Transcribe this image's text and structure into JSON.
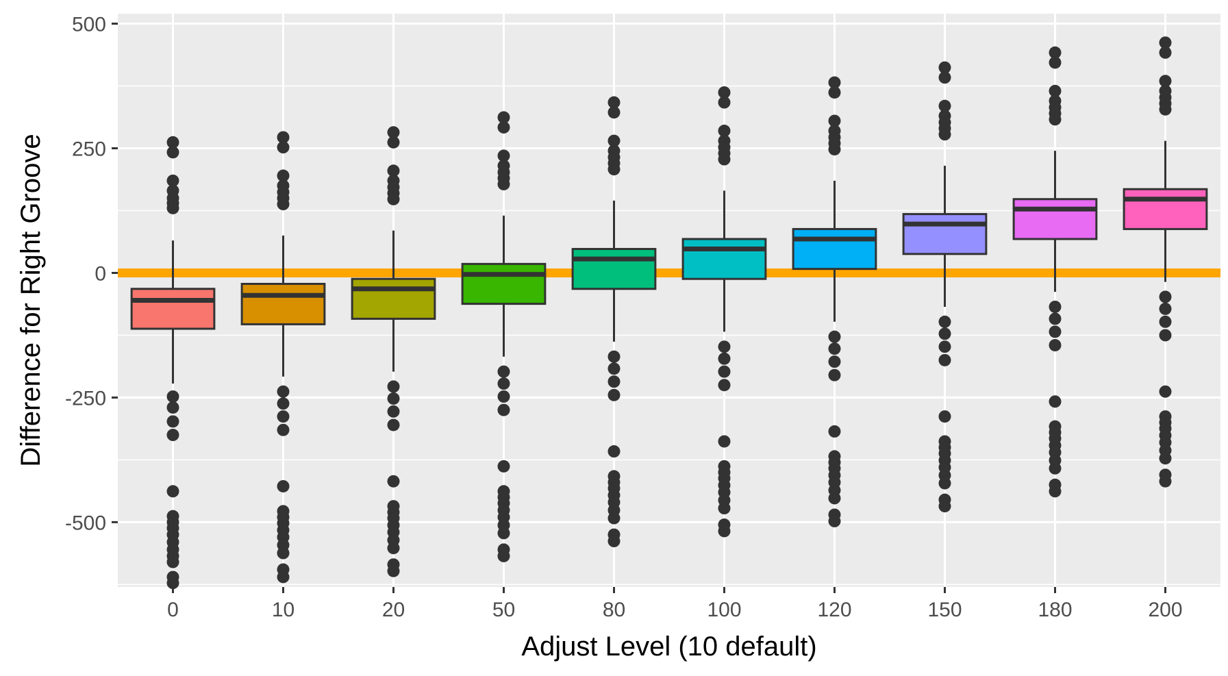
{
  "chart_data": {
    "type": "box",
    "title": "",
    "xlabel": "Adjust Level (10 default)",
    "ylabel": "Difference for Right Groove",
    "ylim": [
      -630,
      520
    ],
    "yticks": [
      500,
      250,
      0,
      -250,
      -500
    ],
    "ytick_labels": [
      "500",
      "250",
      "0",
      "-250",
      "-500"
    ],
    "grid": true,
    "reference_line": {
      "y": 0,
      "color": "#FFA500"
    },
    "categories": [
      "0",
      "10",
      "20",
      "50",
      "80",
      "100",
      "120",
      "150",
      "180",
      "200"
    ],
    "colors": [
      "#F8766D",
      "#D89000",
      "#A3A500",
      "#39B600",
      "#00BF7D",
      "#00BFC4",
      "#00B0F6",
      "#9590FF",
      "#E76BF3",
      "#FF62BC"
    ],
    "boxes": [
      {
        "q1": -112,
        "median": -55,
        "q3": -32,
        "whisker_low": -222,
        "whisker_high": 65,
        "outliers": [
          262,
          242,
          185,
          165,
          150,
          140,
          130,
          -248,
          -270,
          -298,
          -325,
          -438,
          -488,
          -500,
          -512,
          -525,
          -540,
          -555,
          -568,
          -580,
          -610,
          -622
        ]
      },
      {
        "q1": -103,
        "median": -45,
        "q3": -22,
        "whisker_low": -208,
        "whisker_high": 75,
        "outliers": [
          272,
          252,
          195,
          175,
          162,
          150,
          138,
          -238,
          -262,
          -288,
          -315,
          -428,
          -478,
          -490,
          -502,
          -516,
          -530,
          -546,
          -562,
          -595,
          -610
        ]
      },
      {
        "q1": -92,
        "median": -32,
        "q3": -12,
        "whisker_low": -198,
        "whisker_high": 85,
        "outliers": [
          282,
          262,
          205,
          185,
          172,
          160,
          148,
          -228,
          -252,
          -278,
          -305,
          -418,
          -468,
          -480,
          -492,
          -506,
          -520,
          -536,
          -552,
          -585,
          -598
        ]
      },
      {
        "q1": -62,
        "median": -3,
        "q3": 18,
        "whisker_low": -168,
        "whisker_high": 115,
        "outliers": [
          312,
          292,
          235,
          215,
          202,
          190,
          178,
          -198,
          -222,
          -248,
          -275,
          -388,
          -438,
          -450,
          -462,
          -476,
          -490,
          -506,
          -522,
          -555,
          -568
        ]
      },
      {
        "q1": -32,
        "median": 28,
        "q3": 48,
        "whisker_low": -138,
        "whisker_high": 145,
        "outliers": [
          342,
          322,
          265,
          245,
          232,
          220,
          208,
          -168,
          -192,
          -218,
          -245,
          -358,
          -408,
          -420,
          -432,
          -446,
          -460,
          -476,
          -492,
          -525,
          -538
        ]
      },
      {
        "q1": -12,
        "median": 48,
        "q3": 68,
        "whisker_low": -118,
        "whisker_high": 165,
        "outliers": [
          362,
          342,
          285,
          265,
          252,
          240,
          228,
          -148,
          -172,
          -198,
          -225,
          -338,
          -388,
          -400,
          -412,
          -426,
          -440,
          -456,
          -472,
          -505,
          -518
        ]
      },
      {
        "q1": 8,
        "median": 68,
        "q3": 88,
        "whisker_low": -98,
        "whisker_high": 185,
        "outliers": [
          382,
          362,
          305,
          285,
          272,
          260,
          248,
          -128,
          -152,
          -178,
          -205,
          -318,
          -368,
          -380,
          -392,
          -406,
          -420,
          -436,
          -452,
          -485,
          -498
        ]
      },
      {
        "q1": 38,
        "median": 98,
        "q3": 118,
        "whisker_low": -68,
        "whisker_high": 215,
        "outliers": [
          412,
          392,
          335,
          315,
          302,
          290,
          278,
          -98,
          -122,
          -148,
          -175,
          -288,
          -338,
          -350,
          -362,
          -376,
          -390,
          -406,
          -422,
          -455,
          -468
        ]
      },
      {
        "q1": 68,
        "median": 128,
        "q3": 148,
        "whisker_low": -38,
        "whisker_high": 245,
        "outliers": [
          442,
          422,
          365,
          345,
          332,
          320,
          308,
          -68,
          -92,
          -118,
          -145,
          -258,
          -308,
          -320,
          -332,
          -346,
          -360,
          -376,
          -392,
          -425,
          -438
        ]
      },
      {
        "q1": 88,
        "median": 148,
        "q3": 168,
        "whisker_low": -18,
        "whisker_high": 265,
        "outliers": [
          462,
          442,
          385,
          365,
          352,
          340,
          328,
          -48,
          -72,
          -98,
          -125,
          -238,
          -288,
          -300,
          -312,
          -326,
          -340,
          -356,
          -372,
          -405,
          -418
        ]
      }
    ]
  }
}
